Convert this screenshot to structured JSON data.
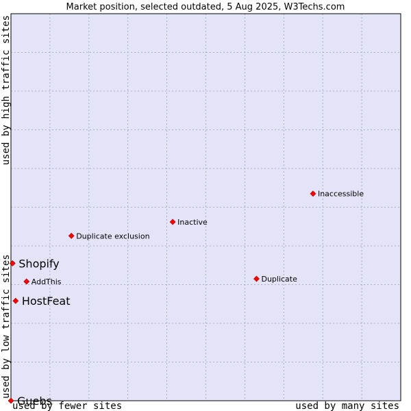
{
  "chart_data": {
    "type": "scatter",
    "title": "Market position, selected outdated, 5 Aug 2025, W3Techs.com",
    "xlabel_left": "used by fewer sites",
    "xlabel_right": "used by many sites",
    "ylabel_bottom": "used by low traffic sites",
    "ylabel_top": "used by high traffic sites",
    "xlim": [
      0,
      100
    ],
    "ylim": [
      0,
      100
    ],
    "grid": true,
    "colors": {
      "plot_bg": "#e3e4f8",
      "grid": "#9a9cb8",
      "border": "#000000",
      "marker": "#ff0000",
      "marker_edge": "#990000"
    },
    "points": [
      {
        "name": "Inaccessible",
        "x": 77.5,
        "y": 53.5,
        "size": "small"
      },
      {
        "name": "Inactive",
        "x": 41.5,
        "y": 46.2,
        "size": "small"
      },
      {
        "name": "Duplicate exclusion",
        "x": 15.5,
        "y": 42.6,
        "size": "small"
      },
      {
        "name": "Shopify",
        "x": 0.4,
        "y": 35.5,
        "size": "large"
      },
      {
        "name": "AddThis",
        "x": 4.0,
        "y": 30.8,
        "size": "small"
      },
      {
        "name": "Duplicate",
        "x": 63.0,
        "y": 31.5,
        "size": "small"
      },
      {
        "name": "HostFeat",
        "x": 1.2,
        "y": 25.8,
        "size": "large"
      },
      {
        "name": "Guebs",
        "x": 0.0,
        "y": 0.0,
        "size": "large"
      }
    ]
  }
}
